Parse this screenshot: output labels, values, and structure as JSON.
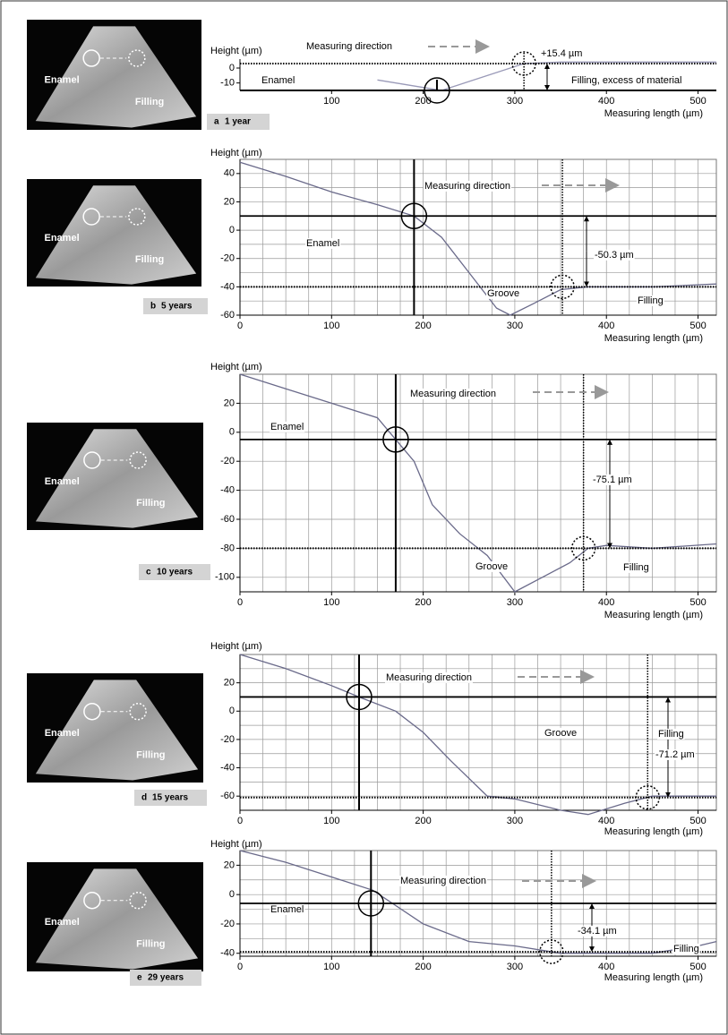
{
  "chart_data": [
    {
      "type": "line",
      "panel": "a",
      "period": "1 year",
      "photo_labels": [
        "Enamel",
        "Filling"
      ],
      "ylabel": "Height (µm)",
      "xlabel": "Measuring length (µm)",
      "annotations": [
        "Measuring direction",
        "+15.4 µm",
        "Enamel",
        "Filling, excess of material"
      ],
      "x": [
        150,
        200,
        220,
        250,
        280,
        310,
        350,
        400,
        450,
        520
      ],
      "series": [
        {
          "color": "#9a9ab8",
          "values": [
            -8,
            -13,
            -15,
            -9,
            -3,
            3,
            4,
            4,
            4,
            4
          ]
        }
      ],
      "xlim": [
        0,
        520
      ],
      "ylim": [
        -15,
        6
      ],
      "xticks": [
        100,
        200,
        300,
        400,
        500
      ],
      "yticks": [
        0,
        -10
      ],
      "grid": false,
      "reference": {
        "solid": [
          215,
          -15
        ],
        "dotted": [
          310,
          3
        ]
      }
    },
    {
      "type": "line",
      "panel": "b",
      "period": "5 years",
      "photo_labels": [
        "Enamel",
        "Filling"
      ],
      "ylabel": "Height (µm)",
      "xlabel": "Measuring length (µm)",
      "annotations": [
        "Measuring direction",
        "-50.3 µm",
        "Enamel",
        "Groove",
        "Filling"
      ],
      "x": [
        0,
        50,
        100,
        150,
        190,
        220,
        250,
        280,
        295,
        320,
        350,
        380,
        450,
        520
      ],
      "series": [
        {
          "color": "#6a6a8a",
          "values": [
            48,
            38,
            27,
            18,
            10,
            -5,
            -30,
            -55,
            -60,
            -52,
            -42,
            -40,
            -40,
            -38
          ]
        }
      ],
      "xlim": [
        0,
        520
      ],
      "ylim": [
        -60,
        50
      ],
      "xticks": [
        0,
        100,
        200,
        300,
        400,
        500
      ],
      "yticks": [
        40,
        20,
        0,
        -20,
        -40,
        -60
      ],
      "grid": true,
      "xgrid": [
        0,
        25,
        50,
        75,
        100,
        125,
        150,
        175,
        200,
        225,
        250,
        275,
        300,
        325,
        350,
        375,
        400,
        425,
        450,
        475,
        500
      ],
      "ygrid": [
        -50,
        -40,
        -30,
        -20,
        -10,
        0,
        10,
        20,
        30,
        40
      ],
      "reference": {
        "solid": [
          190,
          10
        ],
        "dotted": [
          352,
          -40
        ]
      }
    },
    {
      "type": "line",
      "panel": "c",
      "period": "10 years",
      "photo_labels": [
        "Enamel",
        "Filling"
      ],
      "ylabel": "Height (µm)",
      "xlabel": "Measuring length (µm)",
      "annotations": [
        "Measuring direction",
        "-75.1 µm",
        "Enamel",
        "Groove",
        "Filling"
      ],
      "x": [
        0,
        50,
        100,
        150,
        170,
        190,
        210,
        240,
        270,
        300,
        330,
        360,
        380,
        400,
        450,
        520
      ],
      "series": [
        {
          "color": "#6a6a8a",
          "values": [
            40,
            30,
            20,
            10,
            -5,
            -20,
            -50,
            -70,
            -85,
            -110,
            -100,
            -90,
            -80,
            -78,
            -80,
            -77
          ]
        }
      ],
      "xlim": [
        0,
        520
      ],
      "ylim": [
        -110,
        40
      ],
      "xticks": [
        0,
        100,
        200,
        300,
        400,
        500
      ],
      "yticks": [
        20,
        0,
        -20,
        -40,
        -60,
        -80,
        -100
      ],
      "grid": true,
      "xgrid": [
        0,
        25,
        50,
        75,
        100,
        125,
        150,
        175,
        200,
        225,
        250,
        275,
        300,
        325,
        350,
        375,
        400,
        425,
        450,
        475,
        500
      ],
      "ygrid": [
        -100,
        -80,
        -60,
        -40,
        -20,
        0,
        20
      ],
      "reference": {
        "solid": [
          170,
          -5
        ],
        "dotted": [
          375,
          -80
        ]
      }
    },
    {
      "type": "line",
      "panel": "d",
      "period": "15 years",
      "photo_labels": [
        "Enamel",
        "Filling"
      ],
      "ylabel": "Height (µm)",
      "xlabel": "Measuring length (µm)",
      "annotations": [
        "Measuring direction",
        "-71.2 µm",
        "Groove",
        "Filling"
      ],
      "x": [
        0,
        50,
        100,
        130,
        170,
        200,
        230,
        270,
        300,
        350,
        380,
        420,
        450,
        520
      ],
      "series": [
        {
          "color": "#6a6a8a",
          "values": [
            40,
            30,
            18,
            10,
            0,
            -15,
            -35,
            -60,
            -62,
            -70,
            -73,
            -65,
            -60,
            -60
          ]
        }
      ],
      "xlim": [
        0,
        520
      ],
      "ylim": [
        -70,
        40
      ],
      "xticks": [
        0,
        100,
        200,
        300,
        400,
        500
      ],
      "yticks": [
        20,
        0,
        -20,
        -40,
        -60
      ],
      "grid": true,
      "xgrid": [
        0,
        25,
        50,
        75,
        100,
        125,
        150,
        175,
        200,
        225,
        250,
        275,
        300,
        325,
        350,
        375,
        400,
        425,
        450,
        475,
        500
      ],
      "ygrid": [
        -60,
        -50,
        -40,
        -30,
        -20,
        -10,
        0,
        10,
        20,
        30
      ],
      "reference": {
        "solid": [
          130,
          10
        ],
        "dotted": [
          445,
          -61
        ]
      }
    },
    {
      "type": "line",
      "panel": "e",
      "period": "29 years",
      "photo_labels": [
        "Enamel",
        "Filling"
      ],
      "ylabel": "Height (µm)",
      "xlabel": "Measuring length (µm)",
      "annotations": [
        "Measuring direction",
        "-34.1 µm",
        "Enamel",
        "Filling"
      ],
      "x": [
        0,
        50,
        100,
        145,
        200,
        250,
        300,
        350,
        400,
        450,
        500,
        520
      ],
      "series": [
        {
          "color": "#6a6a8a",
          "values": [
            30,
            22,
            12,
            3,
            -20,
            -32,
            -35,
            -40,
            -40,
            -40,
            -35,
            -32
          ]
        }
      ],
      "xlim": [
        0,
        520
      ],
      "ylim": [
        -42,
        30
      ],
      "xticks": [
        0,
        100,
        200,
        300,
        400,
        500
      ],
      "yticks": [
        20,
        0,
        -20,
        -40
      ],
      "grid": true,
      "xgrid": [
        0,
        25,
        50,
        75,
        100,
        125,
        150,
        175,
        200,
        225,
        250,
        275,
        300,
        325,
        350,
        375,
        400,
        425,
        450,
        475,
        500
      ],
      "ygrid": [
        -40,
        -30,
        -20,
        -10,
        0,
        10,
        20
      ],
      "reference": {
        "solid": [
          143,
          -6
        ],
        "dotted": [
          340,
          -39
        ]
      }
    }
  ]
}
